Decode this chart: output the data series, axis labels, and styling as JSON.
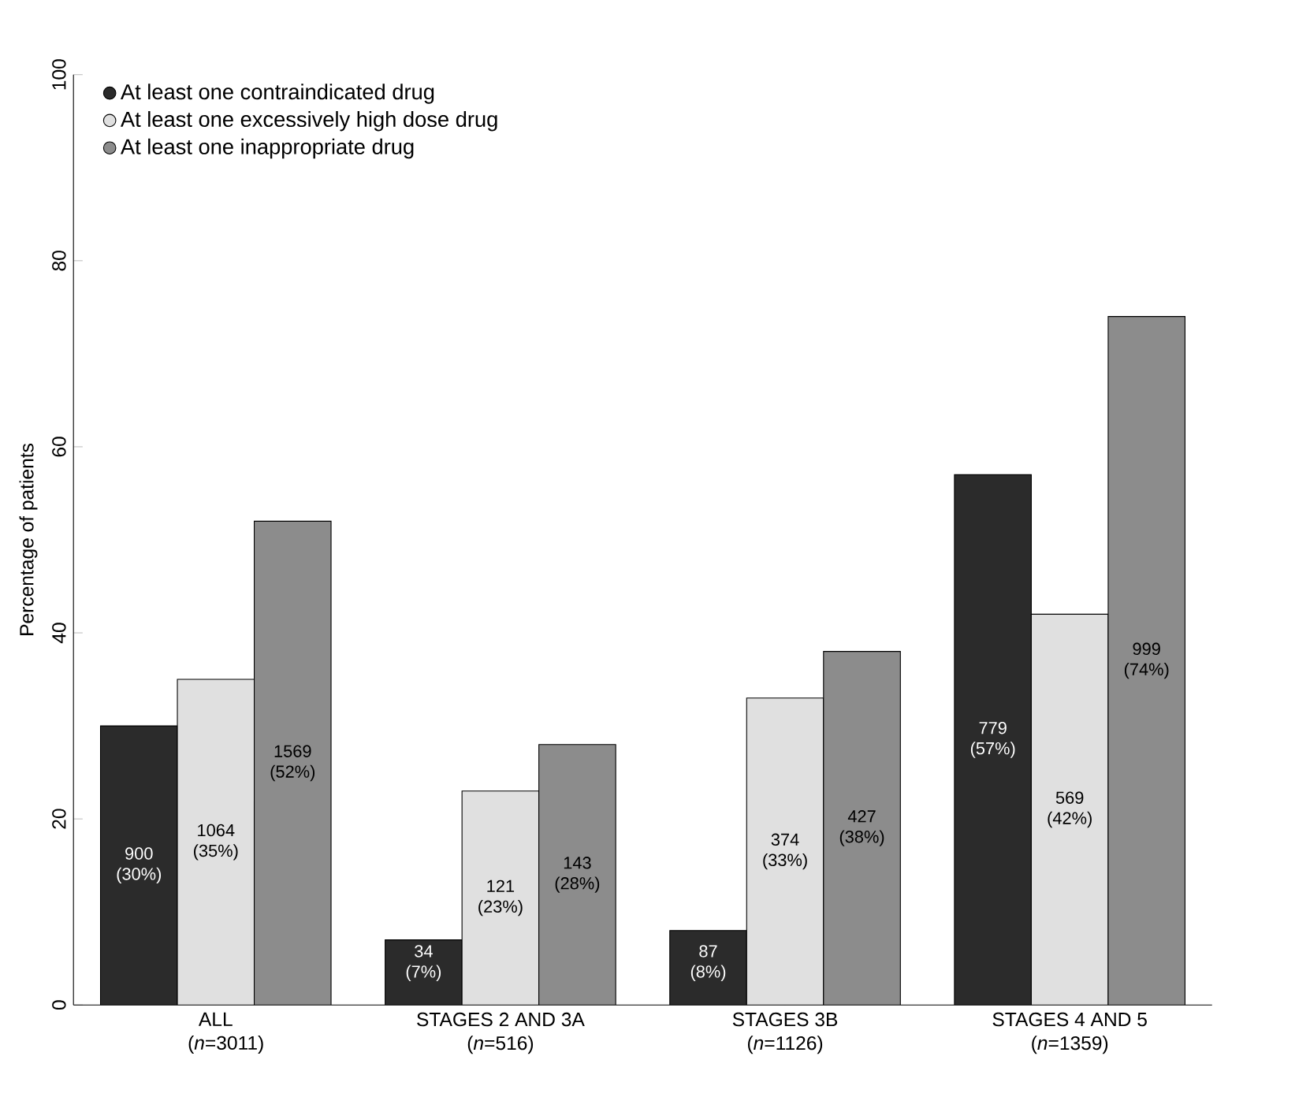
{
  "chart_data": {
    "type": "bar",
    "ylabel": "Percentage of patients",
    "categories": [
      "ALL (*n*=3011)",
      "STAGES 2 AND 3A (*n*=516)",
      "STAGES 3B (*n*=1126)",
      "STAGES 4 AND 5 (*n*=1359)"
    ],
    "series": [
      {
        "name": "At least one contraindicated drug",
        "color": "#2b2b2b",
        "values": [
          30,
          7,
          8,
          57
        ],
        "value_labels": [
          "900 (30%)",
          "34 (7%)",
          "87 (8%)",
          "779 (57%)"
        ]
      },
      {
        "name": "At least one excessively high dose drug",
        "color": "#e0e0e0",
        "values": [
          35,
          23,
          33,
          42
        ],
        "value_labels": [
          "1064 (35%)",
          "121 (23%)",
          "374 (33%)",
          "569 (42%)"
        ]
      },
      {
        "name": "At least one inappropriate drug",
        "color": "#8c8c8c",
        "values": [
          52,
          28,
          38,
          74
        ],
        "value_labels": [
          "1569 (52%)",
          "143 (28%)",
          "427 (38%)",
          "999 (74%)"
        ]
      }
    ],
    "ylim": [
      0,
      100
    ],
    "yticks": [
      0,
      20,
      40,
      60,
      80,
      100
    ],
    "legend": "top left",
    "grid": false
  }
}
